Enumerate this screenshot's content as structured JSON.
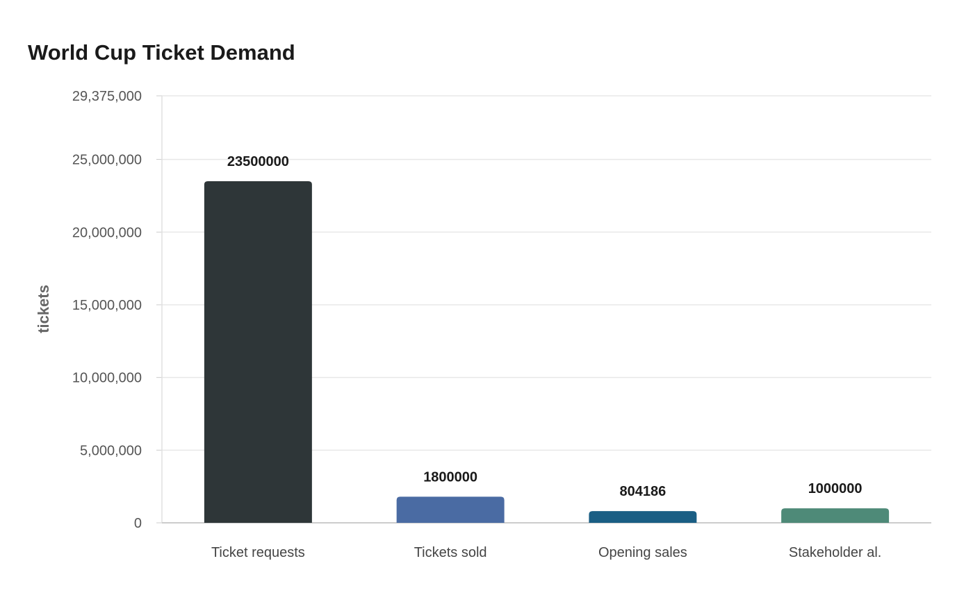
{
  "chart_data": {
    "type": "bar",
    "title": "World Cup Ticket Demand",
    "xlabel": "",
    "ylabel": "tickets",
    "categories": [
      "Ticket requests",
      "Tickets sold",
      "Opening sales",
      "Stakeholder al."
    ],
    "values": [
      23500000,
      1800000,
      804186,
      1000000
    ],
    "value_labels": [
      "23500000",
      "1800000",
      "804186",
      "1000000"
    ],
    "bar_colors": [
      "#2e3638",
      "#4a6ba3",
      "#1a5e84",
      "#4e8a78"
    ],
    "ylim": [
      0,
      29375000
    ],
    "y_ticks": [
      0,
      5000000,
      10000000,
      15000000,
      20000000,
      25000000,
      29375000
    ],
    "y_tick_labels": [
      "0",
      "5,000,000",
      "10,000,000",
      "15,000,000",
      "20,000,000",
      "25,000,000",
      "29,375,000"
    ],
    "grid": true,
    "legend": "none"
  }
}
